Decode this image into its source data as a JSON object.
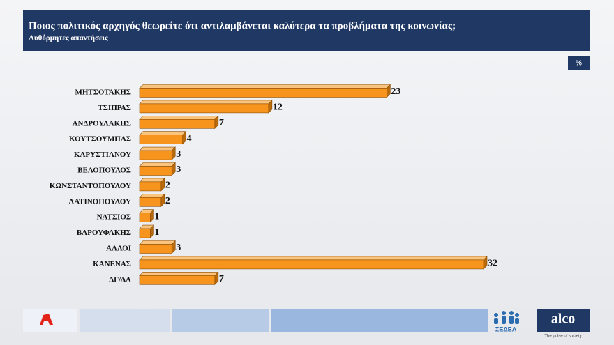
{
  "chart_data": {
    "type": "bar",
    "orientation": "horizontal",
    "title": "Ποιος πολιτικός αρχηγός θεωρείτε ότι αντιλαμβάνεται καλύτερα τα προβλήματα της κοινωνίας;",
    "subtitle": "Αυθόρμητες απαντήσεις",
    "unit_label": "%",
    "categories": [
      "ΜΗΤΣΟΤΑΚΗΣ",
      "ΤΣΙΠΡΑΣ",
      "ΑΝΔΡΟΥΛΑΚΗΣ",
      "ΚΟΥΤΣΟΥΜΠΑΣ",
      "ΚΑΡΥΣΤΙΑΝΟΥ",
      "ΒΕΛΟΠΟΥΛΟΣ",
      "ΚΩΝΣΤΑΝΤΟΠΟΥΛΟΥ",
      "ΛΑΤΙΝΟΠΟΥΛΟΥ",
      "ΝΑΤΣΙΟΣ",
      "ΒΑΡΟΥΦΑΚΗΣ",
      "ΑΛΛΟΙ",
      "ΚΑΝΕΝΑΣ",
      "ΔΓ/ΔΑ"
    ],
    "values": [
      23,
      12,
      7,
      4,
      3,
      3,
      2,
      2,
      1,
      1,
      3,
      32,
      7
    ],
    "color": "#f7941d"
  },
  "footer": {
    "sponsor": "ΣΕΔΕΑ",
    "brand": "alco",
    "tagline": "The pulse of society"
  }
}
